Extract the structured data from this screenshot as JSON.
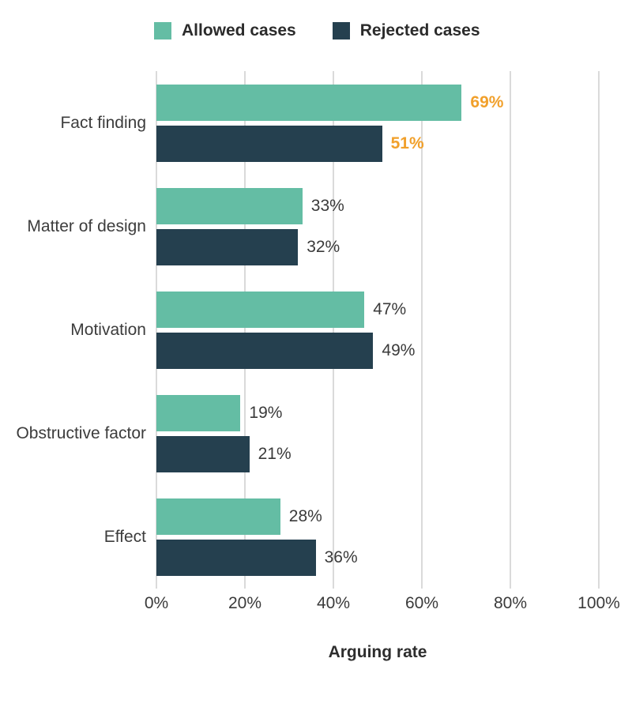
{
  "legend": {
    "items": [
      {
        "label": "Allowed cases",
        "color": "#64bda4"
      },
      {
        "label": "Rejected cases",
        "color": "#25404f"
      }
    ]
  },
  "chart_data": {
    "type": "bar",
    "orientation": "horizontal",
    "title": "",
    "xlabel": "Arguing rate",
    "ylabel": "",
    "xlim": [
      0,
      100
    ],
    "grid": "vertical",
    "legend_position": "top",
    "categories": [
      "Fact finding",
      "Matter of design",
      "Motivation",
      "Obstructive factor",
      "Effect"
    ],
    "series": [
      {
        "name": "Allowed cases",
        "color": "#64bda4",
        "values": [
          69,
          33,
          47,
          19,
          28
        ]
      },
      {
        "name": "Rejected cases",
        "color": "#25404f",
        "values": [
          51,
          32,
          49,
          21,
          36
        ]
      }
    ],
    "value_label_suffix": "%",
    "highlighted_rows": [
      0
    ],
    "highlight_color": "#f1a02b",
    "value_label_color": "#3a3a3a",
    "xticks": [
      {
        "label": "0%",
        "value": 0
      },
      {
        "label": "20%",
        "value": 20
      },
      {
        "label": "40%",
        "value": 40
      },
      {
        "label": "60%",
        "value": 60
      },
      {
        "label": "80%",
        "value": 80
      },
      {
        "label": "100%",
        "value": 100
      }
    ]
  }
}
